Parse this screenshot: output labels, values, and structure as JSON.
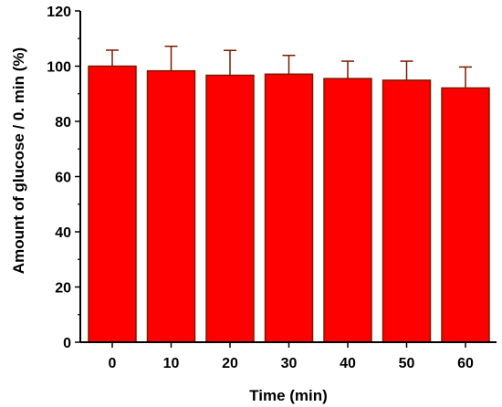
{
  "chart_data": {
    "type": "bar",
    "title": "",
    "xlabel": "Time (min)",
    "ylabel": "Amount of glucose / 0. min (%)",
    "categories": [
      "0",
      "10",
      "20",
      "30",
      "40",
      "50",
      "60"
    ],
    "values": [
      100,
      98.3,
      96.7,
      97.1,
      95.5,
      94.9,
      92.1
    ],
    "errors": [
      5.8,
      8.9,
      9.0,
      6.8,
      6.3,
      6.9,
      7.6
    ],
    "ylim": [
      0,
      120
    ],
    "yticks": [
      0,
      20,
      40,
      60,
      80,
      100,
      120
    ],
    "grid": false,
    "legend": "none",
    "colors": {
      "bar_fill": "#ff0000",
      "bar_edge": "#7a1a00",
      "error_bar": "#7a1a00",
      "axis": "#000000"
    }
  }
}
